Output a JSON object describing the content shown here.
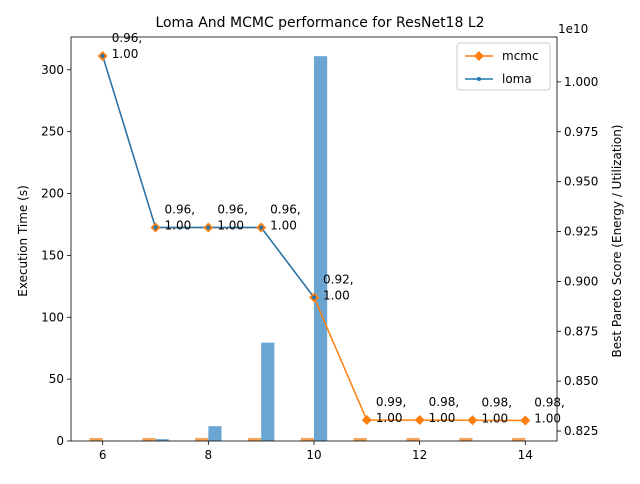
{
  "chart_data": {
    "type": "bar+line",
    "title": "Loma And MCMC performance for ResNet18 L2",
    "xlabel": "",
    "ylabel_left": "Execution Time (s)",
    "ylabel_right": "Best Pareto Score (Energy / Utilization)",
    "right_axis_offset_label": "1e10",
    "x_ticks": [
      6,
      8,
      10,
      12,
      14
    ],
    "x_tick_labels": [
      "6",
      "8",
      "10",
      "12",
      "14"
    ],
    "y_left_ticks": [
      0,
      50,
      100,
      150,
      200,
      250,
      300
    ],
    "y_left_tick_labels": [
      "0",
      "50",
      "100",
      "150",
      "200",
      "250",
      "300"
    ],
    "y_right_ticks": [
      0.825,
      0.85,
      0.875,
      0.9,
      0.925,
      0.95,
      0.975,
      1.0
    ],
    "y_right_tick_labels": [
      "0.825",
      "0.850",
      "0.875",
      "0.900",
      "0.925",
      "0.950",
      "0.975",
      "1.000"
    ],
    "xlim": [
      5.4,
      14.6
    ],
    "ylim_left": [
      0,
      326.5
    ],
    "ylim_right": [
      0.82,
      1.0225
    ],
    "legend_position": "top-right",
    "bars": {
      "mcmc": {
        "x": [
          6,
          7,
          8,
          9,
          10,
          11,
          12,
          13,
          14
        ],
        "values": [
          2.5,
          2.5,
          2.5,
          2.5,
          2.5,
          2.5,
          2.5,
          2.5,
          2.5
        ],
        "color": "#f5a55d"
      },
      "loma": {
        "x": [
          6,
          7,
          8,
          9,
          10
        ],
        "values": [
          0.2,
          1.5,
          12.0,
          79.5,
          311.0
        ],
        "color": "#6ba6d2"
      }
    },
    "series": [
      {
        "name": "mcmc",
        "x": [
          6,
          7,
          8,
          9,
          10,
          11,
          12,
          13,
          14
        ],
        "values": [
          1.013,
          0.927,
          0.927,
          0.927,
          0.892,
          0.8305,
          0.8305,
          0.8304,
          0.8303
        ],
        "color": "#ff7f0e",
        "marker": "diamond"
      },
      {
        "name": "loma",
        "x": [
          6,
          7,
          8,
          9,
          10
        ],
        "values": [
          1.013,
          0.927,
          0.927,
          0.927,
          0.892
        ],
        "color": "#1f77b4",
        "marker": "point"
      }
    ],
    "annotations": [
      {
        "x": 6,
        "text": [
          "0.96,",
          "1.00"
        ]
      },
      {
        "x": 7,
        "text": [
          "0.96,",
          "1.00"
        ]
      },
      {
        "x": 8,
        "text": [
          "0.96,",
          "1.00"
        ]
      },
      {
        "x": 9,
        "text": [
          "0.96,",
          "1.00"
        ]
      },
      {
        "x": 10,
        "text": [
          "0.92,",
          "1.00"
        ]
      },
      {
        "x": 11,
        "text": [
          "0.99,",
          "1.00"
        ]
      },
      {
        "x": 12,
        "text": [
          "0.98,",
          "1.00"
        ]
      },
      {
        "x": 13,
        "text": [
          "0.98,",
          "1.00"
        ]
      },
      {
        "x": 14,
        "text": [
          "0.98,",
          "1.00"
        ]
      }
    ]
  }
}
